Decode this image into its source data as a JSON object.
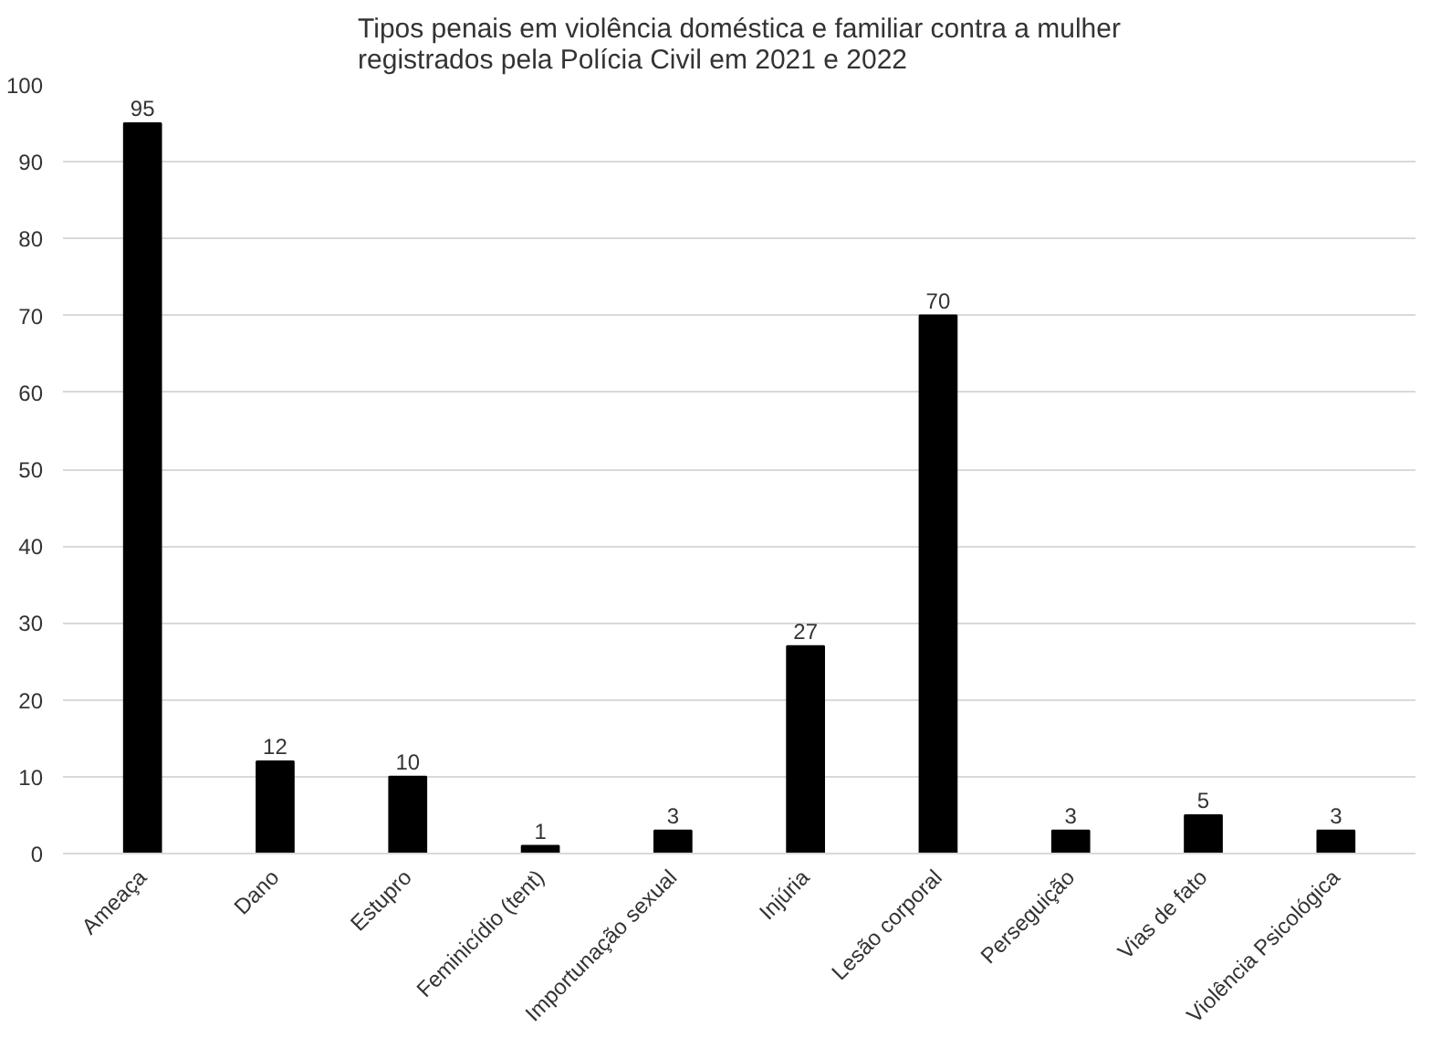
{
  "chart_data": {
    "type": "bar",
    "title": "Tipos penais em violência doméstica e familiar contra a mulher\nregistrados pela Polícia Civil em 2021 e 2022",
    "categories": [
      "Ameaça",
      "Dano",
      "Estupro",
      "Feminicídio (tent)",
      "Importunação sexual",
      "Injúria",
      "Lesão corporal",
      "Perseguição",
      "Vias de fato",
      "Violência Psicológica"
    ],
    "values": [
      95,
      12,
      10,
      1,
      3,
      27,
      70,
      3,
      5,
      3
    ],
    "color": "#000000",
    "ylim": [
      0,
      100
    ],
    "yticks": [
      0,
      10,
      20,
      30,
      40,
      50,
      60,
      70,
      80,
      90,
      100
    ],
    "grid": "y",
    "data_labels": true
  }
}
